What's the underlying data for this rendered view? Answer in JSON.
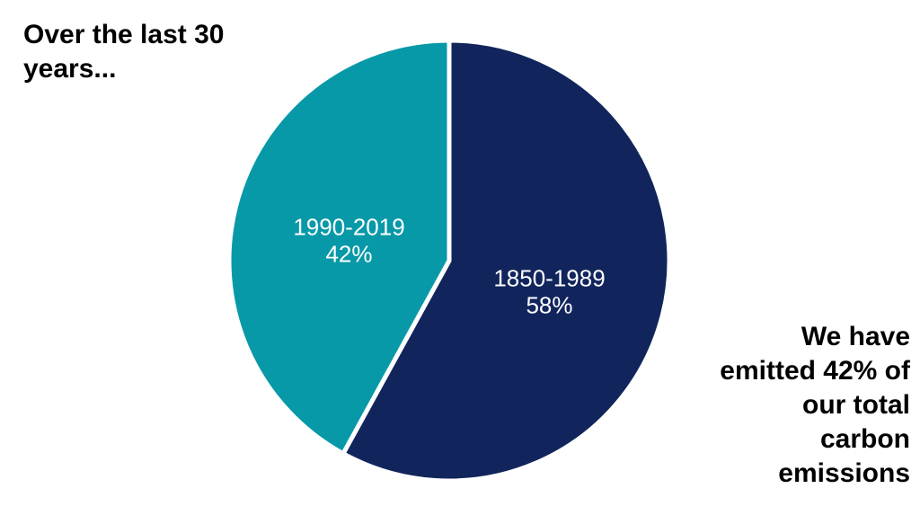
{
  "title": {
    "lines": [
      "Over the last 30",
      "years..."
    ]
  },
  "annotation": {
    "lines": [
      "We have",
      "emitted 42% of",
      "our total",
      "carbon",
      "emissions"
    ]
  },
  "chart_data": {
    "type": "pie",
    "title": "Over the last 30 years...",
    "annotation": "We have emitted 42% of our total carbon emissions",
    "start_angle_deg": 0,
    "direction": "clockwise",
    "legend": "none",
    "divider_color": "#FFFFFF",
    "label_color": "#FFFFFF",
    "background_color": "#FFFFFF",
    "slices": [
      {
        "label": "1850-1989",
        "value": 58,
        "pct_label": "58%",
        "color": "#11255C"
      },
      {
        "label": "1990-2019",
        "value": 42,
        "pct_label": "42%",
        "color": "#0899A8"
      }
    ]
  }
}
